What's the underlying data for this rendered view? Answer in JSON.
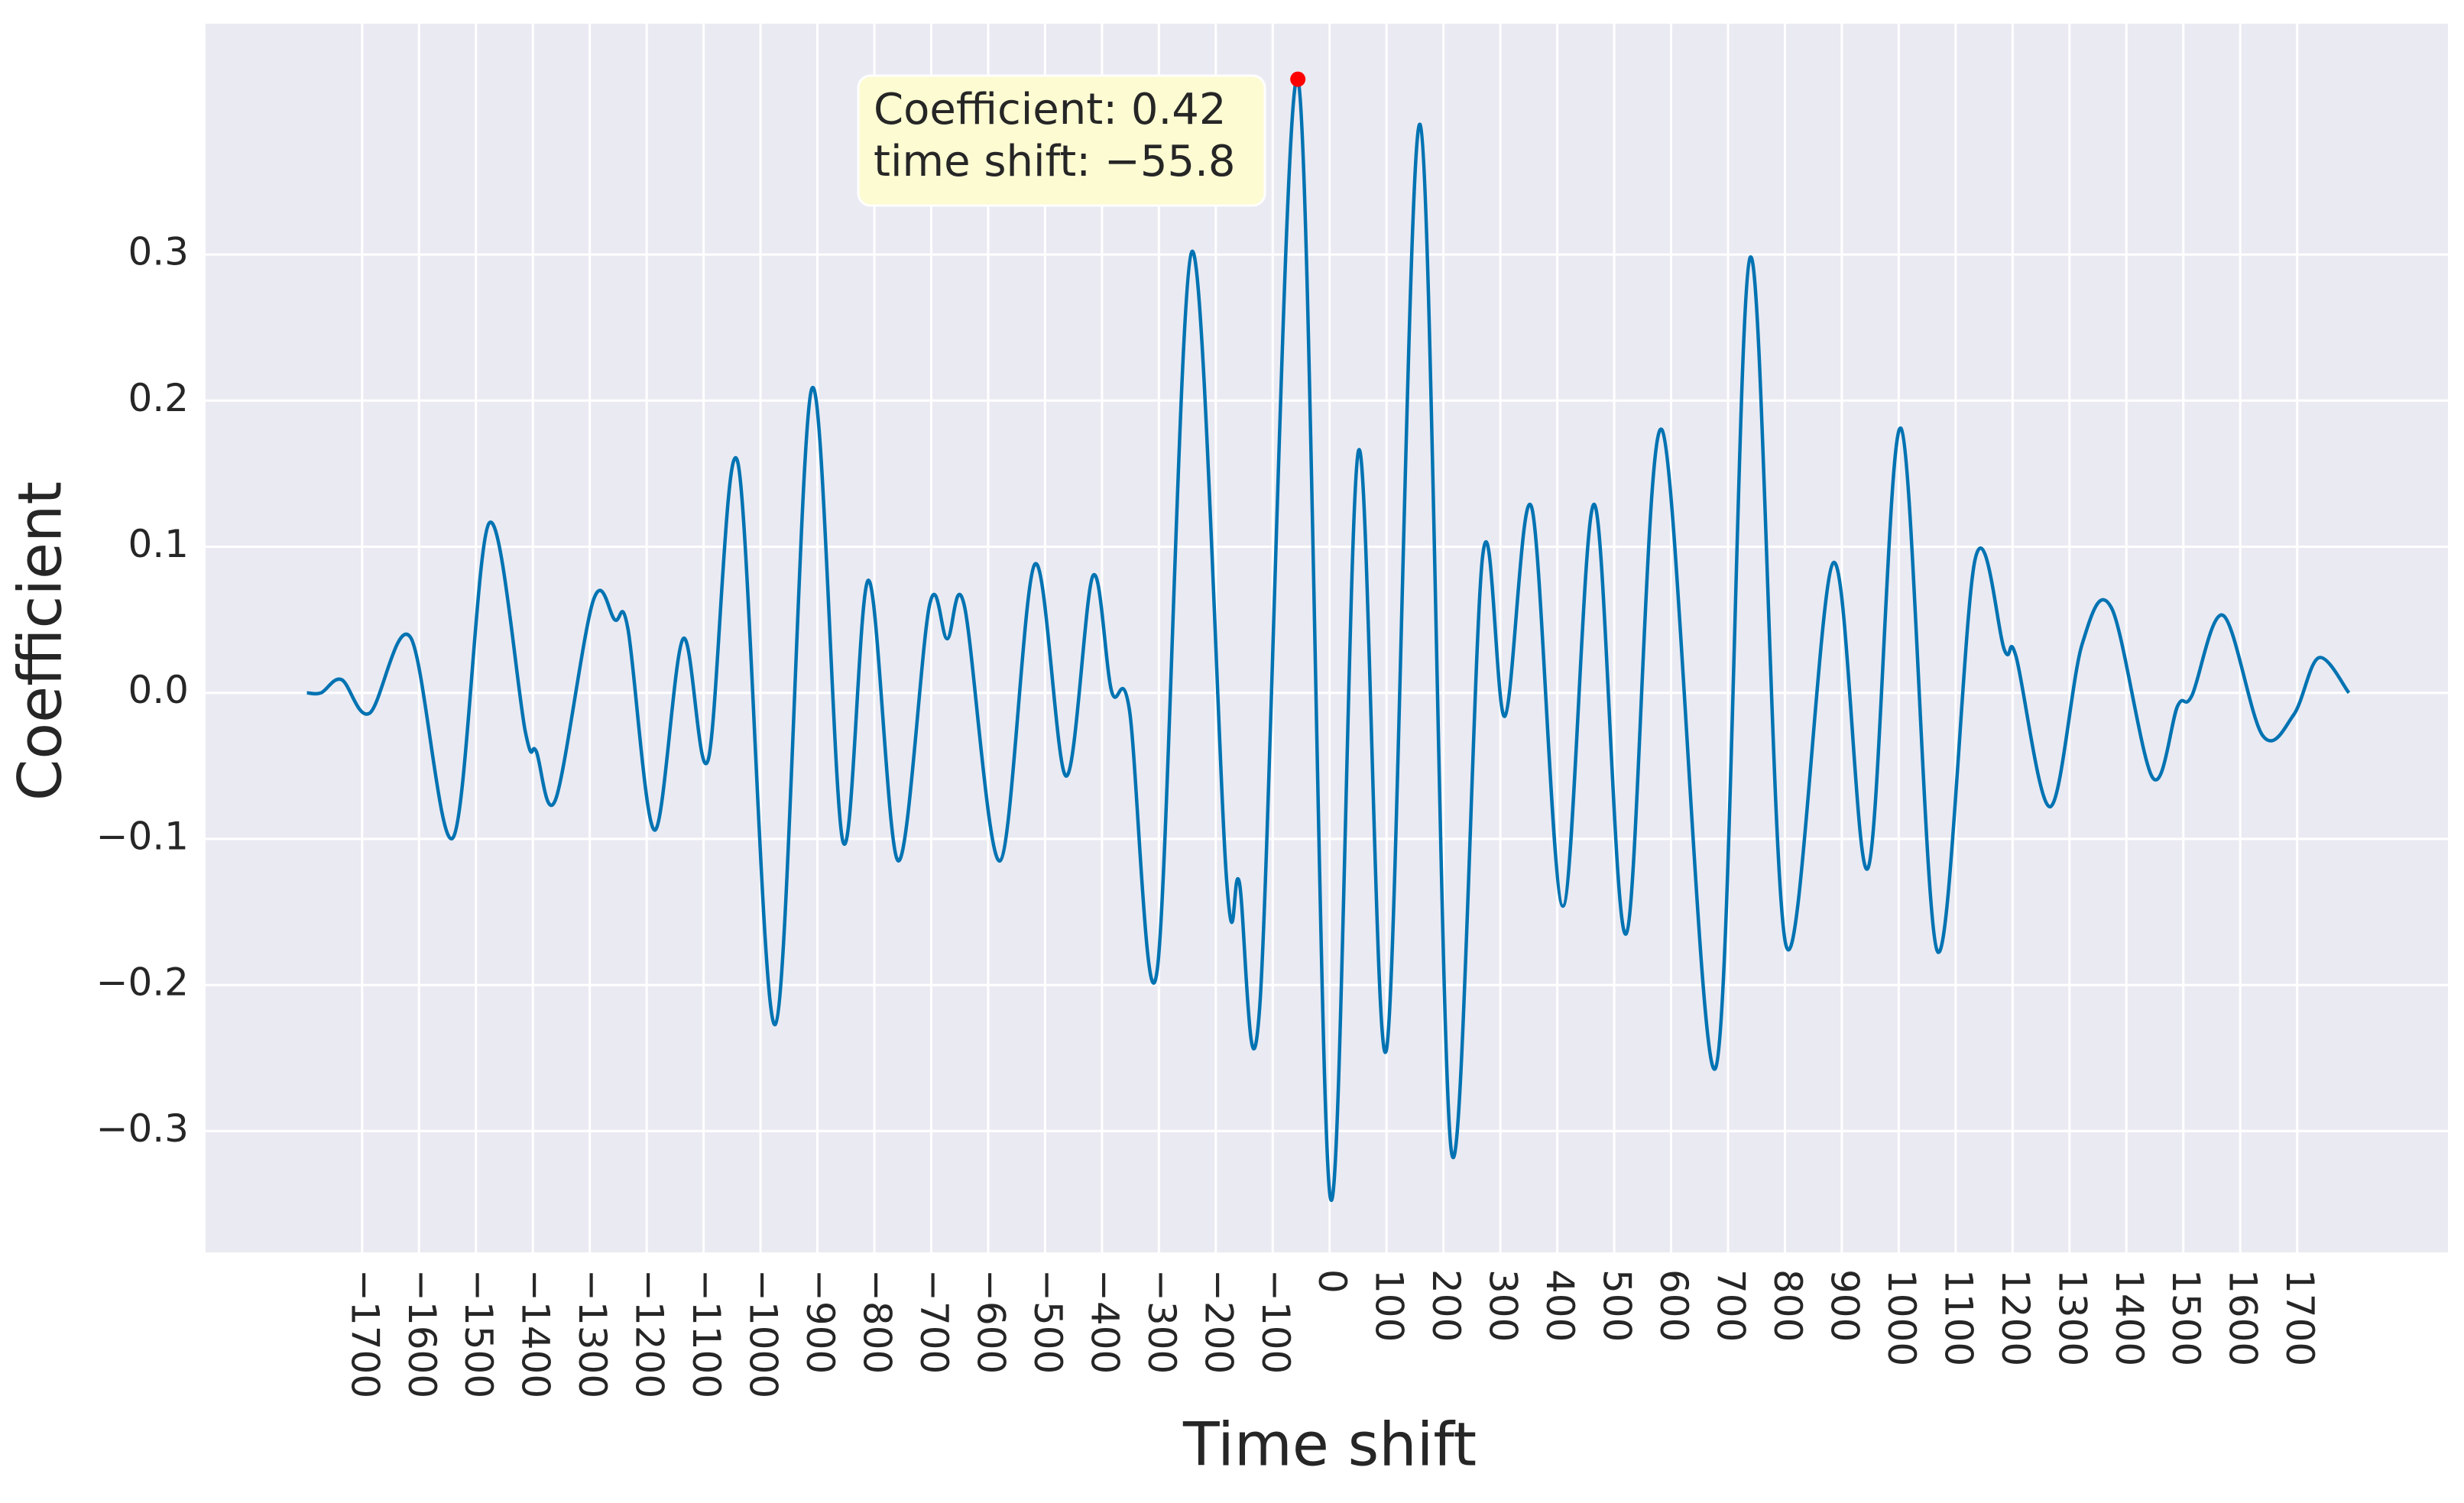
{
  "chart_data": {
    "type": "line",
    "xlabel": "Time shift",
    "ylabel": "Coefficient",
    "x": [
      -1797,
      -1772,
      -1736,
      -1687,
      -1615,
      -1540,
      -1477,
      -1413,
      -1394,
      -1360,
      -1294,
      -1256,
      -1233,
      -1186,
      -1136,
      -1092,
      -1040,
      -974,
      -910,
      -855,
      -810,
      -758,
      -703,
      -672,
      -642,
      -579,
      -518,
      -463,
      -416,
      -383,
      -352,
      -303,
      -242,
      -181,
      -159,
      -123,
      -55.8,
      1,
      51,
      100,
      159,
      214,
      269,
      308,
      355,
      410,
      465,
      521,
      584,
      678,
      739,
      802,
      885,
      946,
      1004,
      1068,
      1134,
      1186,
      1206,
      1266,
      1322,
      1374,
      1446,
      1490,
      1515,
      1570,
      1639,
      1694,
      1738,
      1791
    ],
    "values": [
      0.0,
      0.0,
      0.009,
      -0.014,
      0.038,
      -0.099,
      0.116,
      -0.027,
      -0.04,
      -0.073,
      0.063,
      0.05,
      0.044,
      -0.094,
      0.037,
      -0.046,
      0.158,
      -0.227,
      0.208,
      -0.102,
      0.077,
      -0.115,
      0.06,
      0.037,
      0.06,
      -0.115,
      0.088,
      -0.057,
      0.08,
      0.001,
      -0.011,
      -0.19,
      0.302,
      -0.128,
      -0.129,
      -0.216,
      0.42,
      -0.345,
      0.166,
      -0.244,
      0.389,
      -0.314,
      0.094,
      -0.016,
      0.127,
      -0.146,
      0.129,
      -0.165,
      0.18,
      -0.257,
      0.298,
      -0.173,
      0.089,
      -0.12,
      0.181,
      -0.177,
      0.091,
      0.029,
      0.025,
      -0.078,
      0.033,
      0.058,
      -0.058,
      -0.009,
      -0.002,
      0.053,
      -0.029,
      -0.015,
      0.024,
      0.0
    ],
    "color": "#0173b2",
    "annotation": {
      "x": -55.8,
      "y": 0.42,
      "color": "#ff0000",
      "text": [
        "Coefficient: 0.42",
        "time shift: −55.8"
      ]
    },
    "xlim": [
      -1975,
      1965
    ],
    "ylim": [
      -0.383,
      0.458
    ],
    "xticks": [
      {
        "value": -1700,
        "label": "−1700"
      },
      {
        "value": -1600,
        "label": "−1600"
      },
      {
        "value": -1500,
        "label": "−1500"
      },
      {
        "value": -1400,
        "label": "−1400"
      },
      {
        "value": -1300,
        "label": "−1300"
      },
      {
        "value": -1200,
        "label": "−1200"
      },
      {
        "value": -1100,
        "label": "−1100"
      },
      {
        "value": -1000,
        "label": "−1000"
      },
      {
        "value": -900,
        "label": "−900"
      },
      {
        "value": -800,
        "label": "−800"
      },
      {
        "value": -700,
        "label": "−700"
      },
      {
        "value": -600,
        "label": "−600"
      },
      {
        "value": -500,
        "label": "−500"
      },
      {
        "value": -400,
        "label": "−400"
      },
      {
        "value": -300,
        "label": "−300"
      },
      {
        "value": -200,
        "label": "−200"
      },
      {
        "value": -100,
        "label": "−100"
      },
      0,
      100,
      200,
      300,
      400,
      500,
      600,
      700,
      800,
      900,
      1000,
      1100,
      1200,
      1300,
      1400,
      1500,
      1600,
      1700
    ],
    "yticks": [
      {
        "value": -0.3,
        "label": "−0.3"
      },
      {
        "value": -0.2,
        "label": "−0.2"
      },
      {
        "value": -0.1,
        "label": "−0.1"
      },
      {
        "value": 0,
        "label": "0.0"
      },
      0.1,
      0.2,
      0.3
    ],
    "grid": true
  }
}
